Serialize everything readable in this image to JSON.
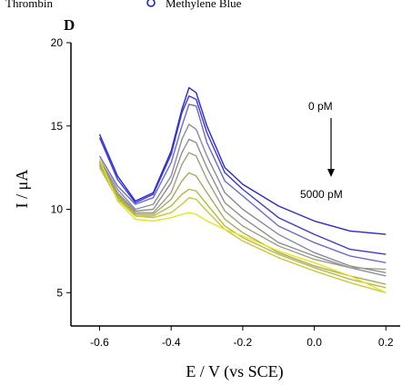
{
  "top_legend": {
    "left_text": "Thrombin",
    "right_text": "Methylene Blue",
    "right_marker_color": "#1a1acc"
  },
  "panel_label": "D",
  "chart_data": {
    "type": "line",
    "title": "",
    "xlabel": "E / V (vs SCE)",
    "ylabel": "I / μA",
    "xlim": [
      -0.68,
      0.24
    ],
    "ylim": [
      3.0,
      20.0
    ],
    "xticks": [
      -0.6,
      -0.4,
      -0.2,
      0.0,
      0.2
    ],
    "xtick_labels": [
      "-0.6",
      "-0.4",
      "-0.2",
      "0.0",
      "0.2"
    ],
    "yticks": [
      5,
      10,
      15,
      20
    ],
    "ytick_labels": [
      "5",
      "10",
      "15",
      "20"
    ],
    "grid": false,
    "annotation": {
      "top_text": "0 pM",
      "bottom_text": "5000 pM",
      "arrow_direction": "down"
    },
    "x": [
      -0.6,
      -0.55,
      -0.5,
      -0.45,
      -0.4,
      -0.37,
      -0.35,
      -0.33,
      -0.3,
      -0.25,
      -0.2,
      -0.1,
      0.0,
      0.1,
      0.2
    ],
    "series": [
      {
        "color": "#2b2bc9",
        "values": [
          14.5,
          12.0,
          10.5,
          11.0,
          13.5,
          16.0,
          17.3,
          17.0,
          15.0,
          12.5,
          11.5,
          10.2,
          9.3,
          8.7,
          8.5
        ]
      },
      {
        "color": "#3a3ad0",
        "values": [
          14.3,
          11.8,
          10.4,
          10.9,
          13.3,
          15.8,
          16.8,
          16.6,
          14.6,
          12.2,
          11.2,
          9.5,
          8.5,
          7.6,
          7.3
        ]
      },
      {
        "color": "#6a6ad0",
        "values": [
          13.2,
          11.4,
          10.3,
          10.7,
          12.8,
          15.0,
          16.3,
          16.2,
          14.0,
          11.7,
          10.8,
          9.0,
          8.0,
          7.2,
          6.8
        ]
      },
      {
        "color": "#8a8aa0",
        "values": [
          13.0,
          11.2,
          10.0,
          10.3,
          12.0,
          14.2,
          15.1,
          14.8,
          13.2,
          11.0,
          10.0,
          8.5,
          7.4,
          6.6,
          6.2
        ]
      },
      {
        "color": "#8e8e8e",
        "values": [
          12.9,
          11.0,
          9.9,
          10.0,
          11.6,
          13.4,
          14.2,
          14.0,
          12.5,
          10.4,
          9.5,
          8.0,
          7.2,
          6.5,
          6.0
        ]
      },
      {
        "color": "#9e9e86",
        "values": [
          12.8,
          10.9,
          9.8,
          9.8,
          11.0,
          12.7,
          13.4,
          13.2,
          11.8,
          9.9,
          9.0,
          7.8,
          7.0,
          6.5,
          6.4
        ]
      },
      {
        "color": "#a8a860",
        "values": [
          12.7,
          10.8,
          9.7,
          9.7,
          10.6,
          11.7,
          12.2,
          12.0,
          11.0,
          9.4,
          8.6,
          7.4,
          6.6,
          6.0,
          5.5
        ]
      },
      {
        "color": "#b8b84a",
        "values": [
          12.6,
          10.7,
          9.6,
          9.6,
          10.2,
          10.9,
          11.2,
          11.1,
          10.3,
          9.0,
          8.3,
          7.3,
          6.5,
          5.8,
          5.3
        ]
      },
      {
        "color": "#c8c838",
        "values": [
          12.5,
          10.6,
          9.6,
          9.5,
          9.8,
          10.3,
          10.7,
          10.6,
          9.9,
          8.8,
          8.1,
          7.1,
          6.3,
          5.6,
          5.0
        ]
      },
      {
        "color": "#e6e61a",
        "values": [
          13.0,
          10.5,
          9.4,
          9.3,
          9.5,
          9.7,
          9.8,
          9.7,
          9.3,
          8.8,
          8.4,
          7.5,
          6.8,
          6.0,
          5.0
        ]
      }
    ]
  }
}
